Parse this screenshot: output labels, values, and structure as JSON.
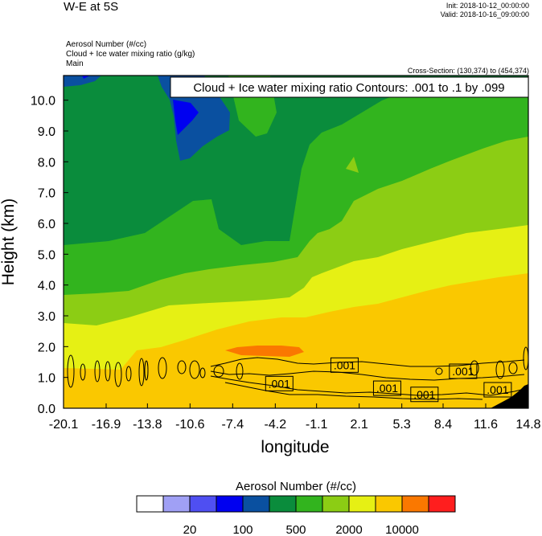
{
  "header": {
    "title": "W-E at 5S",
    "init": "Init: 2018-10-12_00:00:00",
    "valid": "Valid: 2018-10-16_09:00:00",
    "field1": "Aerosol Number   (#/cc)",
    "field2": "Cloud + Ice water mixing ratio   (g/kg)",
    "field3": "Main",
    "cross_section": "Cross-Section: (130,374) to (454,374)"
  },
  "chart_data": {
    "type": "heatmap",
    "overlay": "Cloud + Ice water mixing ratio Contours: .001 to .1 by .099",
    "xlabel": "longitude",
    "ylabel": "Height (km)",
    "x_ticks": [
      "-20.1",
      "-16.9",
      "-13.8",
      "-10.6",
      "-7.4",
      "-4.2",
      "-1.1",
      "2.1",
      "5.3",
      "8.4",
      "11.6",
      "14.8"
    ],
    "y_ticks": [
      "0.0",
      "1.0",
      "2.0",
      "3.0",
      "4.0",
      "5.0",
      "6.0",
      "7.0",
      "8.0",
      "9.0",
      "10.0"
    ],
    "ylim": [
      0,
      10.8
    ],
    "contour_labels": [
      {
        "text": ".001",
        "lon": 1.0,
        "h": 1.4
      },
      {
        "text": ".001",
        "lon": -3.9,
        "h": 0.8
      },
      {
        "text": ".001",
        "lon": 4.2,
        "h": 0.65
      },
      {
        "text": ".001",
        "lon": 7.0,
        "h": 0.45
      },
      {
        "text": ".001",
        "lon": 9.9,
        "h": 1.2
      },
      {
        "text": ".001",
        "lon": 12.5,
        "h": 0.6
      }
    ],
    "colorbar": {
      "title": "Aerosol Number  (#/cc)",
      "colors": [
        "#ffffff",
        "#a0a0f5",
        "#4f4ff2",
        "#0000f0",
        "#0a50a0",
        "#0a8c3c",
        "#32b41e",
        "#8ccd14",
        "#e6f014",
        "#fac800",
        "#fa7800",
        "#ff1e1e"
      ],
      "labels": [
        "20",
        "100",
        "500",
        "2000",
        "10000"
      ]
    }
  }
}
